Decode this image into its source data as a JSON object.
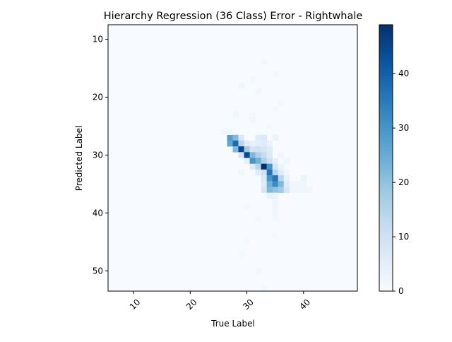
{
  "chart_data": {
    "type": "heatmap",
    "title": "Hierarchy Regression (36 Class) Error - Rightwhale",
    "xlabel": "True Label",
    "ylabel": "Predicted Label",
    "xlim": [
      5.5,
      49.5
    ],
    "ylim": [
      53.5,
      7.5
    ],
    "x_ticks": [
      10,
      20,
      30,
      40
    ],
    "y_ticks": [
      10,
      20,
      30,
      40,
      50
    ],
    "colorbar": {
      "min": 0,
      "max": 49,
      "ticks": [
        0,
        10,
        20,
        30,
        40
      ],
      "colormap": "Blues"
    },
    "colors": {
      "low": "#f7fbff",
      "high": "#08306b"
    },
    "cells": [
      [
        27,
        27,
        28
      ],
      [
        28,
        27,
        22
      ],
      [
        29,
        27,
        7
      ],
      [
        32,
        27,
        6
      ],
      [
        33,
        27,
        7
      ],
      [
        35,
        27,
        3
      ],
      [
        26,
        26,
        2
      ],
      [
        27,
        26,
        2
      ],
      [
        27,
        28,
        26
      ],
      [
        28,
        28,
        38
      ],
      [
        29,
        28,
        14
      ],
      [
        30,
        28,
        6
      ],
      [
        31,
        28,
        4
      ],
      [
        32,
        28,
        5
      ],
      [
        33,
        28,
        6
      ],
      [
        34,
        28,
        3
      ],
      [
        28,
        29,
        22
      ],
      [
        29,
        29,
        45
      ],
      [
        30,
        29,
        18
      ],
      [
        31,
        29,
        9
      ],
      [
        32,
        29,
        10
      ],
      [
        33,
        29,
        8
      ],
      [
        34,
        29,
        6
      ],
      [
        29,
        30,
        8
      ],
      [
        30,
        30,
        44
      ],
      [
        31,
        30,
        22
      ],
      [
        32,
        30,
        16
      ],
      [
        33,
        30,
        12
      ],
      [
        34,
        30,
        7
      ],
      [
        36,
        30,
        2
      ],
      [
        30,
        31,
        4
      ],
      [
        31,
        31,
        30
      ],
      [
        32,
        31,
        24
      ],
      [
        33,
        31,
        16
      ],
      [
        34,
        31,
        10
      ],
      [
        35,
        31,
        4
      ],
      [
        37,
        31,
        2
      ],
      [
        31,
        32,
        6
      ],
      [
        32,
        32,
        14
      ],
      [
        33,
        32,
        49
      ],
      [
        34,
        32,
        30
      ],
      [
        35,
        32,
        8
      ],
      [
        36,
        32,
        3
      ],
      [
        32,
        33,
        6
      ],
      [
        33,
        33,
        10
      ],
      [
        34,
        33,
        36
      ],
      [
        35,
        33,
        14
      ],
      [
        36,
        33,
        6
      ],
      [
        37,
        33,
        2
      ],
      [
        33,
        34,
        7
      ],
      [
        34,
        34,
        30
      ],
      [
        35,
        34,
        36
      ],
      [
        36,
        34,
        14
      ],
      [
        37,
        34,
        4
      ],
      [
        40,
        34,
        3
      ],
      [
        33,
        35,
        6
      ],
      [
        34,
        35,
        24
      ],
      [
        35,
        35,
        32
      ],
      [
        36,
        35,
        22
      ],
      [
        37,
        35,
        6
      ],
      [
        38,
        35,
        2
      ],
      [
        39,
        35,
        2
      ],
      [
        40,
        35,
        2
      ],
      [
        33,
        36,
        8
      ],
      [
        34,
        36,
        22
      ],
      [
        35,
        36,
        20
      ],
      [
        36,
        36,
        18
      ],
      [
        37,
        36,
        8
      ],
      [
        38,
        36,
        2
      ],
      [
        39,
        36,
        2
      ],
      [
        40,
        36,
        2
      ],
      [
        41,
        36,
        2
      ],
      [
        34,
        37,
        4
      ],
      [
        35,
        37,
        3
      ],
      [
        28,
        23,
        2
      ],
      [
        31,
        23,
        1
      ],
      [
        31,
        24,
        2
      ],
      [
        34,
        25,
        1
      ],
      [
        35,
        38,
        2
      ],
      [
        35,
        39,
        2
      ],
      [
        35,
        40,
        2
      ],
      [
        35,
        41,
        1
      ],
      [
        30,
        39,
        1
      ],
      [
        32,
        41,
        1
      ],
      [
        35,
        44,
        1
      ],
      [
        30,
        45,
        1
      ],
      [
        29,
        47,
        1
      ],
      [
        32,
        50,
        1
      ],
      [
        33,
        53,
        1
      ],
      [
        33,
        14,
        1
      ],
      [
        35,
        16,
        1
      ],
      [
        31,
        17,
        1
      ],
      [
        29,
        18,
        2
      ],
      [
        32,
        19,
        1
      ],
      [
        36,
        21,
        1
      ],
      [
        35,
        22,
        1
      ],
      [
        29,
        33,
        2
      ]
    ]
  }
}
